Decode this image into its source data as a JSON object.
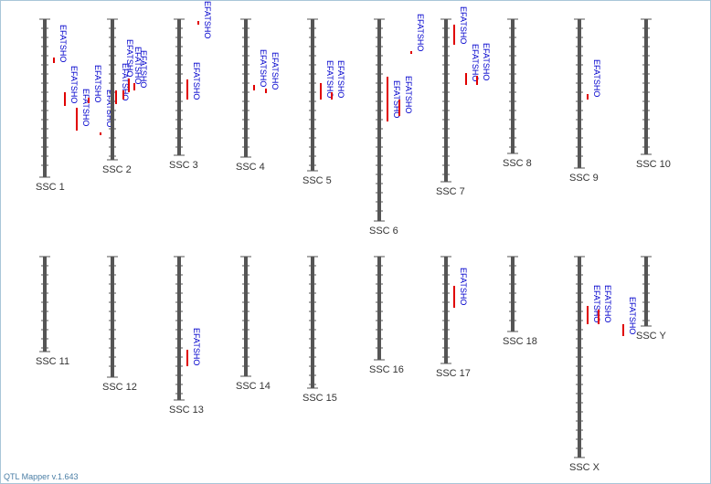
{
  "app": {
    "footer": "QTL Mapper v.1.643"
  },
  "colors": {
    "chromosome": "#555555",
    "tick": "#555555",
    "qtl_bar": "#e00000",
    "qtl_text": "#0000cc",
    "chr_label": "#333333"
  },
  "chromosomes": [
    {
      "name": "SSC 1",
      "qtls": [
        {
          "label": "EFATSHO"
        },
        {
          "label": "EFATSHO"
        },
        {
          "label": "EFATSHO"
        },
        {
          "label": "EFATSHO"
        },
        {
          "label": "EFATSHO"
        }
      ]
    },
    {
      "name": "SSC 2",
      "qtls": [
        {
          "label": "EFATSHO"
        },
        {
          "label": "EFATSHO"
        },
        {
          "label": "EFATSHO"
        },
        {
          "label": "EFATSHO"
        }
      ]
    },
    {
      "name": "SSC 3",
      "qtls": [
        {
          "label": "EFATSHO"
        },
        {
          "label": "EFATSHO"
        }
      ]
    },
    {
      "name": "SSC 4",
      "qtls": [
        {
          "label": "EFATSHO"
        },
        {
          "label": "EFATSHO"
        }
      ]
    },
    {
      "name": "SSC 5",
      "qtls": [
        {
          "label": "EFATSHO"
        },
        {
          "label": "EFATSHO"
        }
      ]
    },
    {
      "name": "SSC 6",
      "qtls": [
        {
          "label": "EFATSHO"
        },
        {
          "label": "EFATSHO"
        },
        {
          "label": "EFATSHO"
        }
      ]
    },
    {
      "name": "SSC 7",
      "qtls": [
        {
          "label": "EFATSHO"
        },
        {
          "label": "EFATSHO"
        },
        {
          "label": "EFATSHO"
        }
      ]
    },
    {
      "name": "SSC 8",
      "qtls": []
    },
    {
      "name": "SSC 9",
      "qtls": [
        {
          "label": "EFATSHO"
        }
      ]
    },
    {
      "name": "SSC 10",
      "qtls": []
    },
    {
      "name": "SSC 11",
      "qtls": []
    },
    {
      "name": "SSC 12",
      "qtls": []
    },
    {
      "name": "SSC 13",
      "qtls": [
        {
          "label": "EFATSHO"
        }
      ]
    },
    {
      "name": "SSC 14",
      "qtls": []
    },
    {
      "name": "SSC 15",
      "qtls": []
    },
    {
      "name": "SSC 16",
      "qtls": []
    },
    {
      "name": "SSC 17",
      "qtls": [
        {
          "label": "EFATSHO"
        }
      ]
    },
    {
      "name": "SSC 18",
      "qtls": []
    },
    {
      "name": "SSC X",
      "qtls": [
        {
          "label": "EFATSHO"
        },
        {
          "label": "EFATSHO"
        },
        {
          "label": "EFATSHO"
        }
      ]
    },
    {
      "name": "SSC Y",
      "qtls": []
    }
  ]
}
